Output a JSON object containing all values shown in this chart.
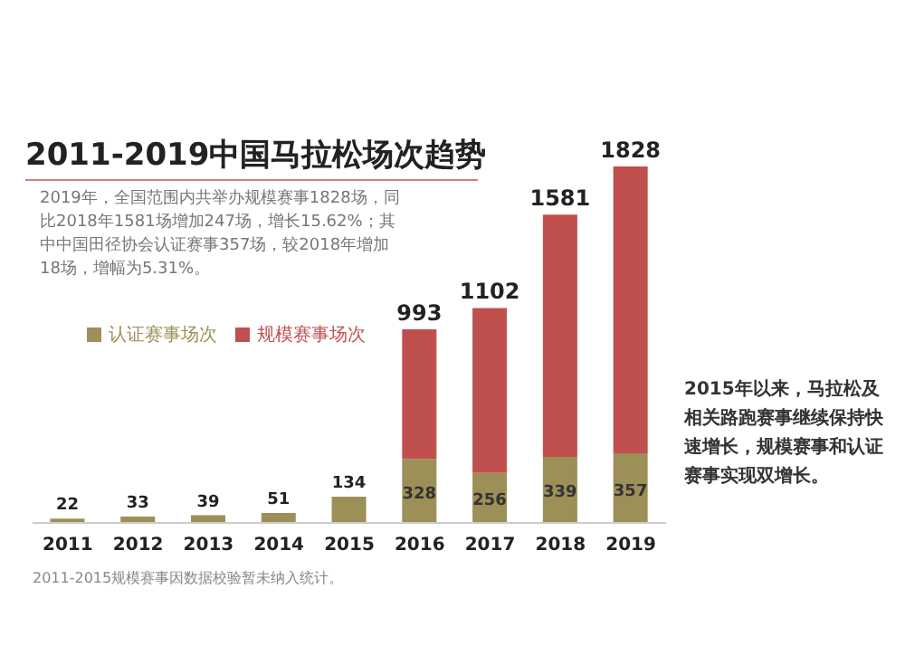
{
  "chart_data": {
    "type": "bar",
    "title": "2011-2019中国马拉松场次趋势",
    "subtitle": "2019年，全国范围内共举办规模赛事1828场，同比2018年1581场增加247场，增长15.62%；其中中国田径协会认证赛事357场，较2018年增加18场，增幅为5.31%。",
    "categories": [
      "2011",
      "2012",
      "2013",
      "2014",
      "2015",
      "2016",
      "2017",
      "2018",
      "2019"
    ],
    "stacked": true,
    "legend": "top left",
    "series": [
      {
        "name": "认证赛事场次",
        "color": "#9c8f58",
        "values": [
          22,
          33,
          39,
          51,
          134,
          328,
          256,
          339,
          357
        ],
        "value_labels": [
          null,
          null,
          null,
          null,
          null,
          "328",
          "256",
          "339",
          "357"
        ]
      },
      {
        "name": "规模赛事场次",
        "color": "#c0504d",
        "values": [
          null,
          null,
          null,
          null,
          null,
          665,
          846,
          1242,
          1471
        ]
      }
    ],
    "totals": [
      "22",
      "33",
      "39",
      "51",
      "134",
      "993",
      "1102",
      "1581",
      "1828"
    ],
    "annotations": [
      "2015年以来，马拉松及相关路跑赛事继续保持快速增长，规模赛事和认证赛事实现双增长。",
      "2011-2015规模赛事因数据校验暂未纳入统计。"
    ]
  }
}
